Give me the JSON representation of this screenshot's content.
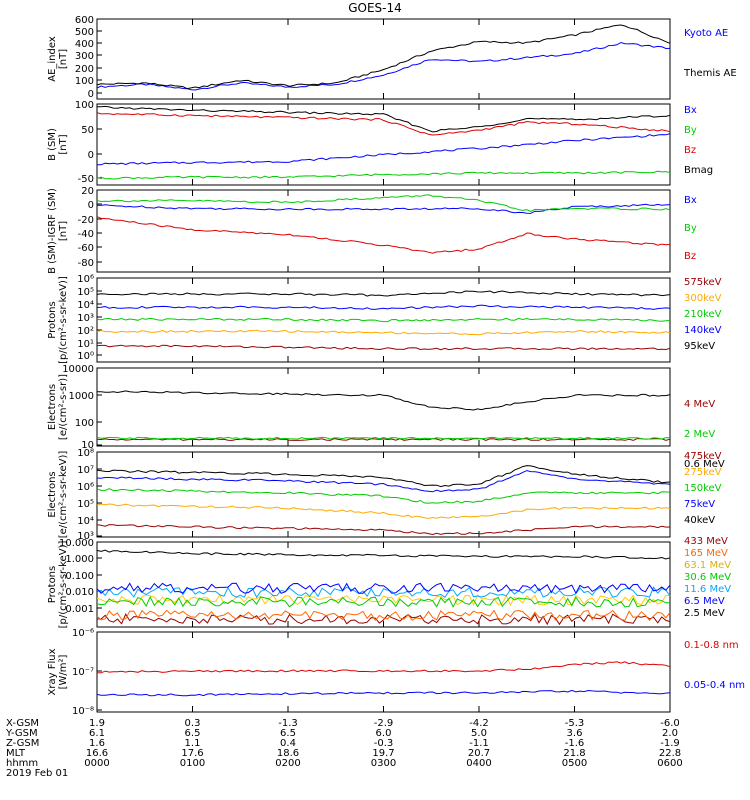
{
  "title": "GOES-14",
  "time_axis": {
    "tick_labels": [
      "0000",
      "0100",
      "0200",
      "0300",
      "0400",
      "0500",
      "0600"
    ],
    "date": "2019 Feb 01",
    "rows": [
      {
        "label": "X-GSM",
        "values": [
          "1.9",
          "0.3",
          "-1.3",
          "-2.9",
          "-4.2",
          "-5.3",
          "-6.0"
        ]
      },
      {
        "label": "Y-GSM",
        "values": [
          "6.1",
          "6.5",
          "6.5",
          "6.0",
          "5.0",
          "3.6",
          "2.0"
        ]
      },
      {
        "label": "Z-GSM",
        "values": [
          "1.6",
          "1.1",
          "0.4",
          "-0.3",
          "-1.1",
          "-1.6",
          "-1.9"
        ]
      },
      {
        "label": "MLT",
        "values": [
          "16.6",
          "17.6",
          "18.6",
          "19.7",
          "20.7",
          "21.8",
          "22.8"
        ]
      },
      {
        "label": "hhmm",
        "values": [
          "0000",
          "0100",
          "0200",
          "0300",
          "0400",
          "0500",
          "0600"
        ]
      }
    ]
  },
  "chart_data": [
    {
      "type": "line",
      "ylabel": [
        "AE_index",
        "[nT]"
      ],
      "yticks": [
        "600",
        "500",
        "400",
        "300",
        "200",
        "100",
        "0"
      ],
      "ylim": [
        0,
        600
      ],
      "series": [
        {
          "name": "Kyoto AE",
          "color": "#0000ff",
          "x": [
            0,
            0.5,
            1,
            1.5,
            2,
            2.5,
            3,
            3.5,
            4,
            4.5,
            5,
            5.5,
            6
          ],
          "y": [
            90,
            110,
            70,
            120,
            90,
            110,
            180,
            300,
            280,
            310,
            340,
            420,
            380
          ]
        },
        {
          "name": "Themis AE",
          "color": "#000000",
          "x": [
            0,
            0.5,
            1,
            1.5,
            2,
            2.5,
            3,
            3.5,
            4,
            4.5,
            5,
            5.5,
            6
          ],
          "y": [
            110,
            120,
            80,
            140,
            100,
            120,
            220,
            360,
            430,
            420,
            480,
            560,
            420
          ]
        }
      ]
    },
    {
      "type": "line",
      "ylabel": [
        "B (SM)",
        "[nT]"
      ],
      "yticks": [
        "100",
        "50",
        "0",
        "-50"
      ],
      "ylim": [
        -55,
        100
      ],
      "series": [
        {
          "name": "Bx",
          "color": "#0000ff",
          "x": [
            0,
            1,
            2,
            3,
            4,
            5,
            6
          ],
          "y": [
            -15,
            -12,
            -10,
            3,
            15,
            30,
            42
          ]
        },
        {
          "name": "By",
          "color": "#00cc00",
          "x": [
            0,
            1,
            2,
            3,
            4,
            5,
            6
          ],
          "y": [
            -42,
            -40,
            -40,
            -35,
            -32,
            -32,
            -30
          ]
        },
        {
          "name": "Bz",
          "color": "#dd0000",
          "x": [
            0,
            1,
            2,
            3,
            3.5,
            4,
            4.5,
            5,
            6
          ],
          "y": [
            82,
            78,
            74,
            70,
            40,
            50,
            65,
            62,
            48
          ]
        },
        {
          "name": "Bmag",
          "color": "#000000",
          "x": [
            0,
            1,
            2,
            3,
            3.5,
            4,
            4.5,
            5,
            6
          ],
          "y": [
            94,
            88,
            84,
            80,
            48,
            56,
            72,
            70,
            78
          ]
        }
      ]
    },
    {
      "type": "line",
      "ylabel": [
        "B (SM)-IGRF (SM)",
        "[nT]"
      ],
      "yticks": [
        "20",
        "0",
        "-20",
        "-40",
        "-60",
        "-80"
      ],
      "ylim": [
        -85,
        22
      ],
      "series": [
        {
          "name": "Bx",
          "color": "#0000ff",
          "x": [
            0,
            1,
            2,
            3,
            4,
            4.5,
            5,
            6
          ],
          "y": [
            2,
            -2,
            -3,
            -3,
            -2,
            -8,
            0,
            3
          ]
        },
        {
          "name": "By",
          "color": "#00cc00",
          "x": [
            0,
            1,
            2,
            3,
            3.5,
            4,
            4.5,
            5,
            6
          ],
          "y": [
            8,
            8,
            6,
            12,
            15,
            8,
            -5,
            -2,
            -3
          ]
        },
        {
          "name": "Bz",
          "color": "#dd0000",
          "x": [
            0,
            1,
            2,
            3,
            3.5,
            4,
            4.5,
            5,
            6
          ],
          "y": [
            -14,
            -30,
            -36,
            -50,
            -60,
            -55,
            -35,
            -42,
            -50
          ]
        }
      ]
    },
    {
      "type": "line",
      "ylabel": [
        "Protons",
        "[p/(cm²-s-sr-keV)]"
      ],
      "yticks": [
        "10⁶",
        "10⁵",
        "10⁴",
        "10³",
        "10²",
        "10¹",
        "10⁰"
      ],
      "ylim_log10": [
        0,
        6.3
      ],
      "series": [
        {
          "name": "575keV",
          "color": "#990000",
          "x": [
            0,
            1,
            2,
            3,
            4,
            5,
            6
          ],
          "y": [
            1.2,
            1.2,
            1.1,
            1.0,
            1.0,
            1.0,
            1.0
          ]
        },
        {
          "name": "300keV",
          "color": "#ffaa00",
          "x": [
            0,
            1,
            2,
            3,
            4,
            5,
            6
          ],
          "y": [
            2.3,
            2.3,
            2.3,
            2.2,
            2.1,
            2.3,
            2.2
          ]
        },
        {
          "name": "210keV",
          "color": "#00cc00",
          "x": [
            0,
            1,
            2,
            3,
            4,
            5,
            6
          ],
          "y": [
            3.2,
            3.2,
            3.2,
            3.1,
            3.2,
            3.2,
            3.1
          ]
        },
        {
          "name": "140keV",
          "color": "#0000ff",
          "x": [
            0,
            1,
            2,
            3,
            4,
            5,
            6
          ],
          "y": [
            4.1,
            4.1,
            4.1,
            4.0,
            4.2,
            4.1,
            4.0
          ]
        },
        {
          "name": "95keV",
          "color": "#000000",
          "x": [
            0,
            1,
            2,
            3,
            4,
            5,
            6
          ],
          "y": [
            5.1,
            5.1,
            5.1,
            5.0,
            5.3,
            5.1,
            5.0
          ]
        }
      ]
    },
    {
      "type": "line",
      "ylabel": [
        "Electrons",
        "[e/(cm²-s-sr)]"
      ],
      "yticks": [
        "10000",
        "1000",
        "100",
        "10"
      ],
      "ylim_log10": [
        1,
        4
      ],
      "series": [
        {
          "name": "4 MeV",
          "color": "#990000",
          "x": [
            0,
            1,
            2,
            3,
            4,
            5,
            6
          ],
          "y": [
            1.25,
            1.25,
            1.25,
            1.25,
            1.25,
            1.25,
            1.25
          ]
        },
        {
          "name": "2 MeV",
          "color": "#00cc00",
          "x": [
            0,
            1,
            2,
            3,
            4,
            5,
            6
          ],
          "y": [
            1.3,
            1.3,
            1.3,
            1.3,
            1.3,
            1.3,
            1.3
          ]
        },
        {
          "name": "0.6 MeV",
          "color": "#000000",
          "x": [
            0,
            1,
            2,
            3,
            3.5,
            4,
            4.5,
            5,
            6
          ],
          "y": [
            3.1,
            3.05,
            3.0,
            2.95,
            2.5,
            2.4,
            2.7,
            2.95,
            2.95
          ]
        }
      ]
    },
    {
      "type": "line",
      "ylabel": [
        "Electrons",
        "[e/(cm²-s-sr-keV)]"
      ],
      "yticks": [
        "10⁸",
        "10⁷",
        "10⁶",
        "10⁵",
        "10⁴",
        "10³"
      ],
      "ylim_log10": [
        3,
        8
      ],
      "series": [
        {
          "name": "475keV",
          "color": "#990000",
          "x": [
            0,
            1,
            2,
            3,
            3.5,
            4,
            4.5,
            5,
            6
          ],
          "y": [
            3.7,
            3.6,
            3.5,
            3.4,
            3.2,
            3.2,
            3.4,
            3.6,
            3.6
          ]
        },
        {
          "name": "275keV",
          "color": "#ffaa00",
          "x": [
            0,
            1,
            2,
            3,
            3.5,
            4,
            4.5,
            5,
            6
          ],
          "y": [
            4.9,
            4.8,
            4.7,
            4.4,
            4.1,
            4.2,
            4.6,
            4.7,
            4.7
          ]
        },
        {
          "name": "150keV",
          "color": "#00cc00",
          "x": [
            0,
            1,
            2,
            3,
            3.5,
            4,
            4.5,
            5,
            6
          ],
          "y": [
            5.8,
            5.7,
            5.6,
            5.4,
            5.0,
            5.1,
            5.6,
            5.6,
            5.6
          ]
        },
        {
          "name": "75keV",
          "color": "#0000ff",
          "x": [
            0,
            1,
            2,
            3,
            3.5,
            4,
            4.5,
            5,
            6
          ],
          "y": [
            6.5,
            6.4,
            6.3,
            6.1,
            5.7,
            5.8,
            6.9,
            6.4,
            6.1
          ]
        },
        {
          "name": "40keV",
          "color": "#000000",
          "x": [
            0,
            1,
            2,
            3,
            3.5,
            4,
            4.5,
            5,
            6
          ],
          "y": [
            6.9,
            6.8,
            6.7,
            6.5,
            6.0,
            6.1,
            7.2,
            6.7,
            6.2
          ]
        }
      ]
    },
    {
      "type": "line",
      "ylabel": [
        "Protons",
        "[p/(cm²-s-sr-keV)]"
      ],
      "yticks": [
        "10.000",
        "1.000",
        "0.100",
        "0.010",
        "0.001"
      ],
      "ylim_log10": [
        -3,
        1.4
      ],
      "series": [
        {
          "name": "433 MeV",
          "color": "#990000",
          "x": [
            0,
            6
          ],
          "y": [
            -2.6,
            -2.6
          ]
        },
        {
          "name": "165 MeV",
          "color": "#ff6600",
          "x": [
            0,
            6
          ],
          "y": [
            -2.4,
            -2.4
          ]
        },
        {
          "name": "63.1 MeV",
          "color": "#ffcc00",
          "x": [
            0,
            6
          ],
          "y": [
            -1.6,
            -1.6
          ]
        },
        {
          "name": "30.6 MeV",
          "color": "#00cc00",
          "x": [
            0,
            6
          ],
          "y": [
            -1.7,
            -1.7
          ]
        },
        {
          "name": "11.6 MeV",
          "color": "#00aaff",
          "x": [
            0,
            6
          ],
          "y": [
            -1.2,
            -1.2
          ]
        },
        {
          "name": "6.5 MeV",
          "color": "#0000ff",
          "x": [
            0,
            6
          ],
          "y": [
            -1.0,
            -1.0
          ]
        },
        {
          "name": "2.5 MeV",
          "color": "#000000",
          "x": [
            0,
            1,
            2,
            3,
            4,
            5,
            6
          ],
          "y": [
            0.95,
            0.8,
            0.75,
            0.7,
            0.65,
            0.65,
            0.55
          ]
        }
      ]
    },
    {
      "type": "line",
      "ylabel": [
        "Xray Flux",
        "[W/m²]"
      ],
      "yticks": [
        "10⁻⁶",
        "10⁻⁷",
        "10⁻⁸"
      ],
      "ylim_log10": [
        -8.1,
        -6
      ],
      "series": [
        {
          "name": "0.1-0.8 nm",
          "color": "#dd0000",
          "x": [
            0,
            1,
            2,
            3,
            4,
            4.5,
            5,
            5.5,
            6
          ],
          "y": [
            -7.05,
            -7.03,
            -7.02,
            -7.02,
            -7.02,
            -6.98,
            -6.85,
            -6.8,
            -6.9
          ]
        },
        {
          "name": "0.05-0.4 nm",
          "color": "#0000ff",
          "x": [
            0,
            1,
            2,
            3,
            4,
            5,
            6
          ],
          "y": [
            -7.65,
            -7.65,
            -7.62,
            -7.6,
            -7.6,
            -7.55,
            -7.62
          ]
        }
      ]
    }
  ]
}
